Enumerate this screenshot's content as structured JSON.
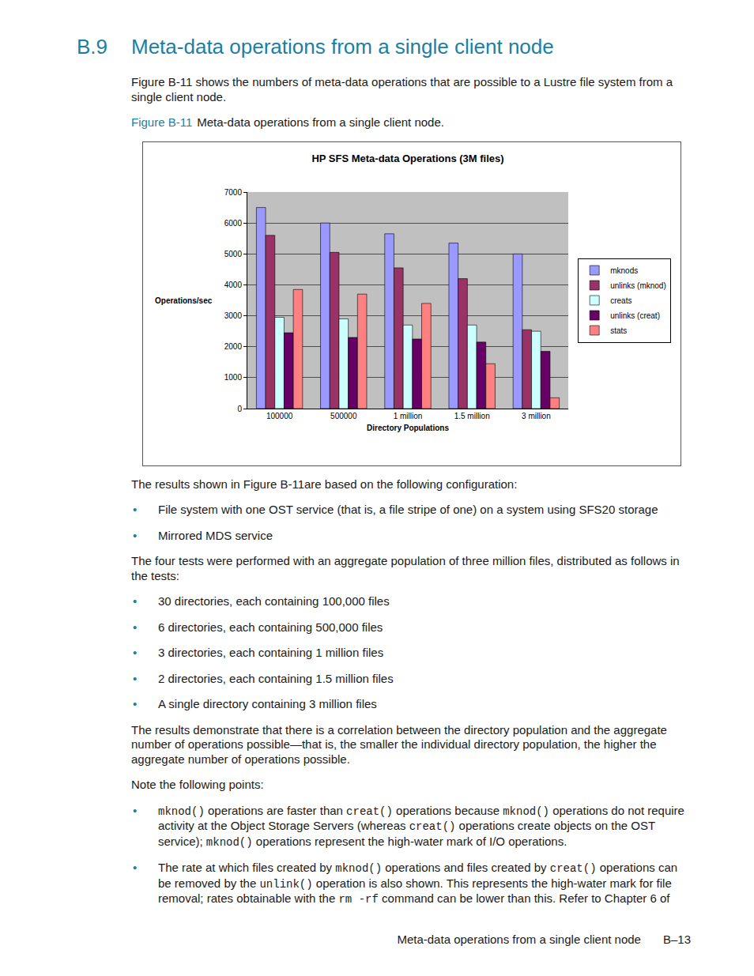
{
  "header": {
    "number": "B.9",
    "title": "Meta-data operations from a single client node"
  },
  "intro": "Figure B-11 shows the numbers of meta-data operations that are possible to a Lustre file system from a single client node.",
  "figure_caption": {
    "label": "Figure B-11",
    "text": "Meta-data operations from a single client node."
  },
  "chart_data": {
    "type": "bar",
    "title": "HP SFS Meta-data Operations (3M files)",
    "x_label": "Directory Populations",
    "y_label": "Operations/sec",
    "categories": [
      "100000",
      "500000",
      "1 million",
      "1.5 million",
      "3 million"
    ],
    "series": [
      {
        "name": "mknods",
        "color": "#9999ff",
        "values": [
          6500,
          6000,
          5650,
          5350,
          5000
        ]
      },
      {
        "name": "unlinks (mknod)",
        "color": "#993366",
        "values": [
          5600,
          5050,
          4550,
          4200,
          2550
        ]
      },
      {
        "name": "creats",
        "color": "#ccffff",
        "values": [
          2950,
          2900,
          2700,
          2700,
          2500
        ]
      },
      {
        "name": "unlinks (creat)",
        "color": "#660066",
        "values": [
          2450,
          2300,
          2250,
          2150,
          1850
        ]
      },
      {
        "name": "stats",
        "color": "#ff8080",
        "values": [
          3850,
          3700,
          3400,
          1450,
          350
        ]
      }
    ],
    "ylim": [
      0,
      7000
    ],
    "yticks": [
      0,
      1000,
      2000,
      3000,
      4000,
      5000,
      6000,
      7000
    ],
    "grid": true,
    "legend": "right"
  },
  "body": [
    {
      "p": "The results shown in Figure B-11are based on the following configuration:"
    },
    {
      "bullets": [
        "File system with one OST service (that is, a file stripe of one) on a system using SFS20 storage",
        "Mirrored MDS service"
      ]
    },
    {
      "p": "The four tests were performed with an aggregate population of three million files, distributed as follows in the tests:"
    },
    {
      "bullets": [
        "30 directories, each containing 100,000 files",
        "6 directories, each containing 500,000 files",
        "3 directories, each containing 1 million files",
        "2 directories, each containing 1.5 million files",
        "A single directory containing 3 million files"
      ]
    },
    {
      "p": "The results demonstrate that there is a correlation between the directory population and the aggregate number of operations possible—that is, the smaller the individual directory population, the higher the aggregate number of operations possible."
    },
    {
      "p": "Note the following points:"
    },
    {
      "bullets": [
        [
          {
            "code": "mknod()"
          },
          " operations are faster than ",
          {
            "code": "creat()"
          },
          " operations because ",
          {
            "code": "mknod()"
          },
          " operations do not require activity at the Object Storage Servers (whereas ",
          {
            "code": "creat()"
          },
          " operations create objects on the OST service); ",
          {
            "code": "mknod()"
          },
          " operations represent the high-water mark of I/O operations."
        ],
        [
          "The rate at which files created by ",
          {
            "code": "mknod()"
          },
          " operations and files created by ",
          {
            "code": "creat()"
          },
          " operations can be removed by the ",
          {
            "code": "unlink()"
          },
          " operation is also shown. This represents the high-water mark for file removal; rates obtainable with the ",
          {
            "code": "rm -rf"
          },
          " command can be lower than this. Refer to Chapter 6 of"
        ]
      ]
    }
  ],
  "footer": {
    "text": "Meta-data operations from a single client node",
    "page": "B–13"
  }
}
